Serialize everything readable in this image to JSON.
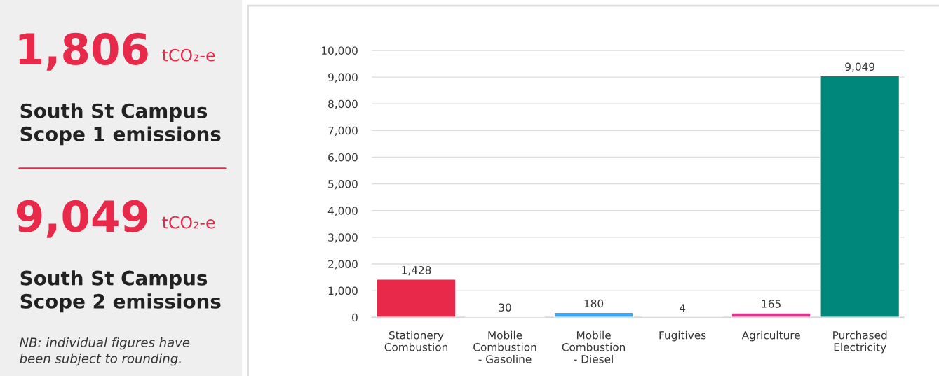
{
  "chart_data": [
    {
      "type": "other",
      "annotations": [
        "1,806 tCO₂-e",
        "South St Campus\nScope 1 emissions",
        "9,049 tCO₂-e",
        "South St Campus\nScope 2 emissions",
        "NB: individual figures have\nbeen subject to rounding."
      ]
    },
    {
      "type": "bar",
      "categories": [
        "Stationery\nCombustion",
        "Mobile\nCombustion\n- Gasoline",
        "Mobile\nCombustion\n- Diesel",
        "Fugitives",
        "Agriculture",
        "Purchased\nElectricity"
      ],
      "values": [
        1428,
        30,
        180,
        4,
        165,
        9049
      ],
      "colors": [
        "#e8294a",
        "#f39c12",
        "#3aa9f4",
        "#7d5fb2",
        "#d63a90",
        "#00877c"
      ],
      "value_labels": [
        "1,428",
        "30",
        "180",
        "4",
        "165",
        "9,049"
      ],
      "ylim": [
        0,
        10000
      ],
      "yticks": [
        0,
        {
          "value": 1000,
          "label": "1,000"
        },
        {
          "value": 2000,
          "label": "2,000"
        },
        {
          "value": 3000,
          "label": "3,000"
        },
        {
          "value": 4000,
          "label": "4,000"
        },
        {
          "value": 5000,
          "label": "5,000"
        },
        {
          "value": 6000,
          "label": "6,000"
        },
        {
          "value": 7000,
          "label": "7,000"
        },
        {
          "value": 8000,
          "label": "8,000"
        },
        {
          "value": 9000,
          "label": "9,000"
        },
        {
          "value": 10000,
          "label": "10,000"
        }
      ],
      "grid": "y"
    }
  ]
}
